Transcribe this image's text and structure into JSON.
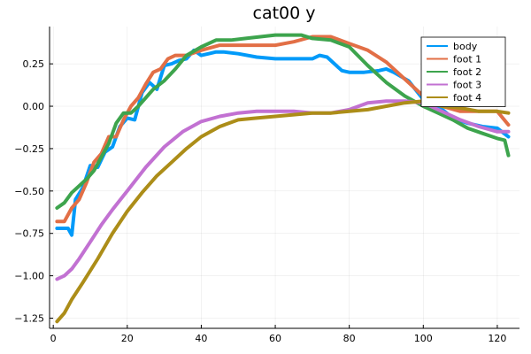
{
  "chart_data": {
    "type": "line",
    "title": "cat00 y",
    "xlabel": "",
    "ylabel": "",
    "xlim": [
      -1,
      126
    ],
    "ylim": [
      -1.31,
      0.47
    ],
    "xticks": [
      0,
      20,
      40,
      60,
      80,
      100,
      120
    ],
    "xtick_labels": [
      "0",
      "20",
      "40",
      "60",
      "80",
      "100",
      "120"
    ],
    "yticks": [
      -1.25,
      -1.0,
      -0.75,
      -0.5,
      -0.25,
      0.0,
      0.25
    ],
    "ytick_labels": [
      "−1.25",
      "−1.00",
      "−0.75",
      "−0.50",
      "−0.25",
      "0.00",
      "0.25"
    ],
    "grid": true,
    "legend_position": "top-right",
    "series": [
      {
        "name": "body",
        "color": "#009af9",
        "x": [
          1,
          4,
          5,
          6,
          8,
          10,
          12,
          14,
          16,
          18,
          20,
          22,
          24,
          26,
          28,
          30,
          32,
          34,
          36,
          38,
          40,
          42,
          44,
          46,
          50,
          55,
          60,
          65,
          70,
          72,
          74,
          76,
          78,
          80,
          84,
          88,
          90,
          92,
          96,
          100,
          104,
          108,
          112,
          116,
          120,
          123
        ],
        "y": [
          -0.72,
          -0.72,
          -0.76,
          -0.55,
          -0.48,
          -0.35,
          -0.36,
          -0.27,
          -0.24,
          -0.12,
          -0.07,
          -0.08,
          0.08,
          0.14,
          0.1,
          0.24,
          0.25,
          0.27,
          0.28,
          0.33,
          0.3,
          0.31,
          0.32,
          0.32,
          0.31,
          0.29,
          0.28,
          0.28,
          0.28,
          0.3,
          0.29,
          0.25,
          0.21,
          0.2,
          0.2,
          0.21,
          0.22,
          0.2,
          0.15,
          0.04,
          0.0,
          -0.07,
          -0.1,
          -0.12,
          -0.13,
          -0.18
        ]
      },
      {
        "name": "foot 1",
        "color": "#e26f46",
        "x": [
          1,
          3,
          5,
          7,
          9,
          11,
          13,
          15,
          17,
          19,
          21,
          23,
          25,
          27,
          29,
          31,
          33,
          36,
          40,
          45,
          50,
          55,
          60,
          65,
          70,
          75,
          80,
          85,
          90,
          95,
          100,
          105,
          110,
          115,
          120,
          123
        ],
        "y": [
          -0.68,
          -0.68,
          -0.6,
          -0.55,
          -0.45,
          -0.33,
          -0.28,
          -0.18,
          -0.18,
          -0.08,
          0.0,
          0.05,
          0.13,
          0.2,
          0.22,
          0.28,
          0.3,
          0.3,
          0.33,
          0.36,
          0.36,
          0.36,
          0.36,
          0.38,
          0.41,
          0.41,
          0.37,
          0.33,
          0.26,
          0.16,
          0.06,
          0.0,
          -0.03,
          -0.03,
          -0.03,
          -0.11
        ]
      },
      {
        "name": "foot 2",
        "color": "#3da44d",
        "x": [
          1,
          3,
          5,
          7,
          9,
          11,
          13,
          15,
          17,
          19,
          21,
          23,
          25,
          27,
          30,
          33,
          36,
          40,
          44,
          48,
          52,
          56,
          60,
          64,
          67,
          70,
          75,
          80,
          85,
          90,
          95,
          100,
          104,
          108,
          112,
          116,
          120,
          122,
          123
        ],
        "y": [
          -0.6,
          -0.57,
          -0.51,
          -0.47,
          -0.43,
          -0.38,
          -0.3,
          -0.22,
          -0.1,
          -0.04,
          -0.04,
          0.0,
          0.05,
          0.1,
          0.15,
          0.22,
          0.3,
          0.35,
          0.39,
          0.39,
          0.4,
          0.41,
          0.42,
          0.42,
          0.42,
          0.4,
          0.39,
          0.35,
          0.24,
          0.14,
          0.06,
          0.0,
          -0.04,
          -0.08,
          -0.13,
          -0.16,
          -0.19,
          -0.2,
          -0.29
        ]
      },
      {
        "name": "foot 3",
        "color": "#c271d2",
        "x": [
          1,
          3,
          5,
          7,
          10,
          13,
          16,
          20,
          25,
          30,
          35,
          40,
          45,
          50,
          55,
          60,
          65,
          70,
          75,
          80,
          85,
          90,
          95,
          100,
          105,
          110,
          115,
          120,
          122,
          123
        ],
        "y": [
          -1.02,
          -1.0,
          -0.96,
          -0.9,
          -0.8,
          -0.7,
          -0.61,
          -0.5,
          -0.36,
          -0.24,
          -0.15,
          -0.09,
          -0.06,
          -0.04,
          -0.03,
          -0.03,
          -0.03,
          -0.04,
          -0.04,
          -0.02,
          0.02,
          0.03,
          0.03,
          0.02,
          -0.03,
          -0.08,
          -0.12,
          -0.15,
          -0.15,
          -0.15
        ]
      },
      {
        "name": "foot 4",
        "color": "#ac8d18",
        "x": [
          1,
          3,
          5,
          8,
          12,
          16,
          20,
          24,
          28,
          32,
          36,
          40,
          45,
          50,
          55,
          60,
          65,
          70,
          75,
          80,
          85,
          90,
          95,
          100,
          105,
          110,
          115,
          120,
          123
        ],
        "y": [
          -1.27,
          -1.22,
          -1.14,
          -1.04,
          -0.9,
          -0.75,
          -0.62,
          -0.51,
          -0.41,
          -0.33,
          -0.25,
          -0.18,
          -0.12,
          -0.08,
          -0.07,
          -0.06,
          -0.05,
          -0.04,
          -0.04,
          -0.03,
          -0.02,
          0.0,
          0.02,
          0.03,
          0.0,
          -0.01,
          -0.03,
          -0.03,
          -0.04
        ]
      }
    ]
  }
}
